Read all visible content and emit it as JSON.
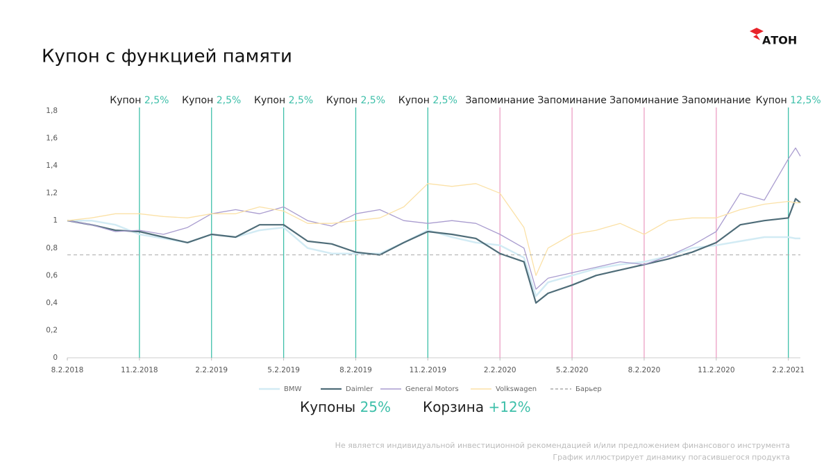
{
  "brand": "АТОН",
  "chart_data": {
    "type": "line",
    "title": "Купон с функцией памяти",
    "x": [
      0,
      1,
      2,
      3,
      4,
      5,
      6,
      7,
      8,
      9,
      10,
      11,
      12,
      13,
      14,
      15,
      16,
      17,
      18,
      19,
      19.5,
      20,
      21,
      22,
      23,
      24,
      25,
      26,
      27,
      28,
      29,
      30,
      30.3,
      30.5
    ],
    "xlim": [
      0,
      30.5
    ],
    "xticks": [
      {
        "value": 0,
        "label": "8.2.2018"
      },
      {
        "value": 3,
        "label": "11.2.2018"
      },
      {
        "value": 6,
        "label": "2.2.2019"
      },
      {
        "value": 9,
        "label": "5.2.2019"
      },
      {
        "value": 12,
        "label": "8.2.2019"
      },
      {
        "value": 15,
        "label": "11.2.2019"
      },
      {
        "value": 18,
        "label": "2.2.2020"
      },
      {
        "value": 21,
        "label": "5.2.2020"
      },
      {
        "value": 24,
        "label": "8.2.2020"
      },
      {
        "value": 27,
        "label": "11.2.2020"
      },
      {
        "value": 30,
        "label": "2.2.2021"
      }
    ],
    "ylim": [
      0,
      1.8
    ],
    "yticks": [
      {
        "value": 0,
        "label": "0"
      },
      {
        "value": 0.2,
        "label": "0,2"
      },
      {
        "value": 0.4,
        "label": "0,4"
      },
      {
        "value": 0.6,
        "label": "0,6"
      },
      {
        "value": 0.8,
        "label": "0,8"
      },
      {
        "value": 1,
        "label": "1"
      },
      {
        "value": 1.2,
        "label": "1,2"
      },
      {
        "value": 1.4,
        "label": "1,4"
      },
      {
        "value": 1.6,
        "label": "1,6"
      },
      {
        "value": 1.8,
        "label": "1,8"
      }
    ],
    "series": [
      {
        "name": "BMW",
        "color": "#d2ebf4",
        "width": 2.5,
        "values": [
          1.0,
          1.0,
          0.97,
          0.9,
          0.87,
          0.84,
          0.9,
          0.88,
          0.93,
          0.95,
          0.8,
          0.76,
          0.76,
          0.76,
          0.84,
          0.93,
          0.88,
          0.84,
          0.82,
          0.73,
          0.45,
          0.55,
          0.6,
          0.65,
          0.68,
          0.7,
          0.74,
          0.8,
          0.82,
          0.85,
          0.88,
          0.88,
          0.87,
          0.87
        ]
      },
      {
        "name": "Daimler",
        "color": "#4e6c78",
        "width": 2.2,
        "values": [
          1.0,
          0.97,
          0.93,
          0.92,
          0.88,
          0.84,
          0.9,
          0.88,
          0.97,
          0.97,
          0.85,
          0.83,
          0.77,
          0.75,
          0.84,
          0.92,
          0.9,
          0.87,
          0.76,
          0.7,
          0.4,
          0.47,
          0.53,
          0.6,
          0.64,
          0.68,
          0.72,
          0.77,
          0.84,
          0.97,
          1.0,
          1.02,
          1.16,
          1.13
        ]
      },
      {
        "name": "General Motors",
        "color": "#a99ccf",
        "width": 1.3,
        "values": [
          1.0,
          0.97,
          0.92,
          0.93,
          0.9,
          0.95,
          1.05,
          1.08,
          1.05,
          1.1,
          1.0,
          0.96,
          1.05,
          1.08,
          1.0,
          0.98,
          1.0,
          0.98,
          0.9,
          0.8,
          0.5,
          0.58,
          0.62,
          0.66,
          0.7,
          0.68,
          0.74,
          0.82,
          0.92,
          1.2,
          1.15,
          1.45,
          1.53,
          1.47
        ]
      },
      {
        "name": "Volkswagen",
        "color": "#fbe1a6",
        "width": 1.3,
        "values": [
          1.0,
          1.02,
          1.05,
          1.05,
          1.03,
          1.02,
          1.05,
          1.05,
          1.1,
          1.07,
          0.98,
          0.98,
          1.0,
          1.02,
          1.1,
          1.27,
          1.25,
          1.27,
          1.2,
          0.95,
          0.6,
          0.8,
          0.9,
          0.93,
          0.98,
          0.9,
          1.0,
          1.02,
          1.02,
          1.08,
          1.12,
          1.14,
          1.13,
          1.13
        ]
      }
    ],
    "barrier": {
      "name": "Барьер",
      "value": 0.75,
      "color": "#aaaaaa"
    },
    "annotations": [
      {
        "x": 3,
        "text": "Купон",
        "highlight": "2,5%",
        "color": "#3dbfa9"
      },
      {
        "x": 6,
        "text": "Купон",
        "highlight": "2,5%",
        "color": "#3dbfa9"
      },
      {
        "x": 9,
        "text": "Купон",
        "highlight": "2,5%",
        "color": "#3dbfa9"
      },
      {
        "x": 12,
        "text": "Купон",
        "highlight": "2,5%",
        "color": "#3dbfa9"
      },
      {
        "x": 15,
        "text": "Купон",
        "highlight": "2,5%",
        "color": "#3dbfa9"
      },
      {
        "x": 18,
        "text": "Запоминание",
        "color": "#ec9fc4"
      },
      {
        "x": 21,
        "text": "Запоминание",
        "color": "#ec9fc4"
      },
      {
        "x": 24,
        "text": "Запоминание",
        "color": "#ec9fc4"
      },
      {
        "x": 27,
        "text": "Запоминание",
        "color": "#ec9fc4"
      },
      {
        "x": 30,
        "text": "Купон",
        "highlight": "12,5%",
        "color": "#3dbfa9"
      }
    ]
  },
  "summary": [
    {
      "label": "Купоны",
      "value": "25%"
    },
    {
      "label": "Корзина",
      "value": "+12%"
    }
  ],
  "disclaimer": [
    "Не является индивидуальной инвестиционной рекомендацией и/или предложением финансового инструмента",
    "График иллюстрирует динамику погасившегося продукта"
  ]
}
